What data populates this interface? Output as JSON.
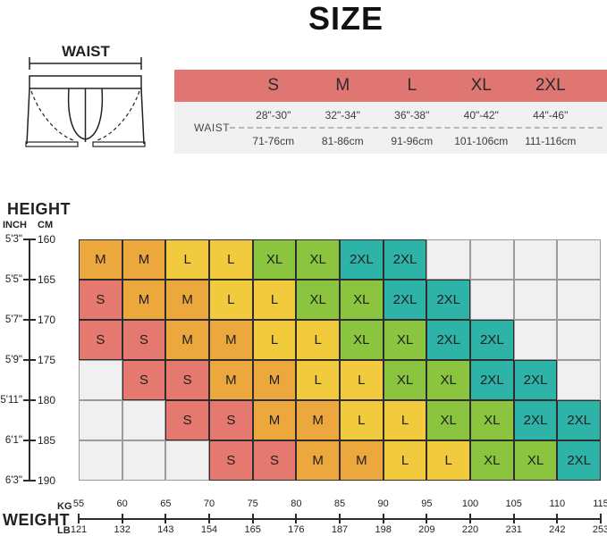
{
  "title": "SIZE",
  "labels": {
    "waist_diagram": "WAIST",
    "waist_row": "WAIST",
    "height_title": "HEIGHT",
    "inch_header": "INCH",
    "cm_header": "CM",
    "weight_title": "WEIGHT",
    "kg_label": "KG",
    "lb_label": "LB"
  },
  "colors": {
    "table_header": "#e07672",
    "table_body_bg": "#f1f1f1",
    "empty_cell": "#f0f0f0",
    "grid_line_empty": "#9b9b9b",
    "grid_line_filled": "#2e2e2e",
    "sizes": {
      "S": "#e5796f",
      "M": "#eca73d",
      "L": "#f2ca3d",
      "XL": "#8bc43e",
      "2XL": "#2eb3a9"
    }
  },
  "chart_data": {
    "type": "heatmap",
    "title": "SIZE",
    "xlabel": "WEIGHT",
    "ylabel": "HEIGHT",
    "legend": [
      "S",
      "M",
      "L",
      "XL",
      "2XL"
    ],
    "x_ticks_kg": [
      55,
      60,
      65,
      70,
      75,
      80,
      85,
      90,
      95,
      100,
      105,
      110,
      115
    ],
    "x_ticks_lb": [
      121,
      132,
      143,
      154,
      165,
      176,
      187,
      198,
      209,
      220,
      231,
      242,
      253
    ],
    "y_ticks_inch": [
      "5'3\"",
      "5'5\"",
      "5'7\"",
      "5'9\"",
      "5'11\"",
      "6'1\"",
      "6'3\""
    ],
    "y_ticks_cm": [
      160,
      165,
      170,
      175,
      180,
      185,
      190
    ],
    "rows": [
      [
        "M",
        "M",
        "L",
        "L",
        "XL",
        "XL",
        "2XL",
        "2XL",
        "",
        "",
        "",
        ""
      ],
      [
        "S",
        "M",
        "M",
        "L",
        "L",
        "XL",
        "XL",
        "2XL",
        "2XL",
        "",
        "",
        ""
      ],
      [
        "S",
        "S",
        "M",
        "M",
        "L",
        "L",
        "XL",
        "XL",
        "2XL",
        "2XL",
        "",
        ""
      ],
      [
        "",
        "S",
        "S",
        "M",
        "M",
        "L",
        "L",
        "XL",
        "XL",
        "2XL",
        "2XL",
        ""
      ],
      [
        "",
        "",
        "S",
        "S",
        "M",
        "M",
        "L",
        "L",
        "XL",
        "XL",
        "2XL",
        "2XL"
      ],
      [
        "",
        "",
        "",
        "S",
        "S",
        "M",
        "M",
        "L",
        "L",
        "XL",
        "XL",
        "2XL"
      ]
    ],
    "waist_table": {
      "sizes": [
        "S",
        "M",
        "L",
        "XL",
        "2XL"
      ],
      "waist_inches": [
        "28\"-30\"",
        "32\"-34\"",
        "36\"-38\"",
        "40\"-42\"",
        "44\"-46\""
      ],
      "waist_cm": [
        "71-76cm",
        "81-86cm",
        "91-96cm",
        "101-106cm",
        "111-116cm"
      ]
    }
  }
}
